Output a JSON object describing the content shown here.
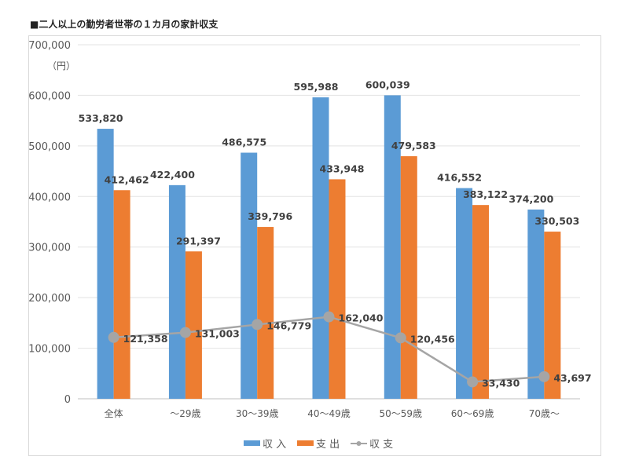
{
  "chart_data": {
    "type": "bar",
    "title": "■二人以上の勤労者世帯の１カ月の家計収支",
    "ylabel": "（円）",
    "ylim": [
      0,
      700000
    ],
    "yticks": [
      0,
      100000,
      200000,
      300000,
      400000,
      500000,
      600000,
      700000
    ],
    "ytick_labels": [
      "0",
      "100,000",
      "200,000",
      "300,000",
      "400,000",
      "500,000",
      "600,000",
      "700,000"
    ],
    "grid": true,
    "legend_position": "bottom",
    "categories": [
      "全体",
      "～29歳",
      "30～39歳",
      "40～49歳",
      "50～59歳",
      "60～69歳",
      "70歳～"
    ],
    "series": [
      {
        "name": "収 入",
        "kind": "bar",
        "color": "#5b9bd5",
        "values": [
          533820,
          422400,
          486575,
          595988,
          600039,
          416552,
          374200
        ],
        "labels": [
          "533,820",
          "422,400",
          "486,575",
          "595,988",
          "600,039",
          "416,552",
          "374,200"
        ]
      },
      {
        "name": "支 出",
        "kind": "bar",
        "color": "#ed7d31",
        "values": [
          412462,
          291397,
          339796,
          433948,
          479583,
          383122,
          330503
        ],
        "labels": [
          "412,462",
          "291,397",
          "339,796",
          "433,948",
          "479,583",
          "383,122",
          "330,503"
        ]
      },
      {
        "name": "収 支",
        "kind": "line",
        "color": "#a5a5a5",
        "values": [
          121358,
          131003,
          146779,
          162040,
          120456,
          33430,
          43697
        ],
        "labels": [
          "121,358",
          "131,003",
          "146,779",
          "162,040",
          "120,456",
          "33,430",
          "43,697"
        ]
      }
    ]
  }
}
